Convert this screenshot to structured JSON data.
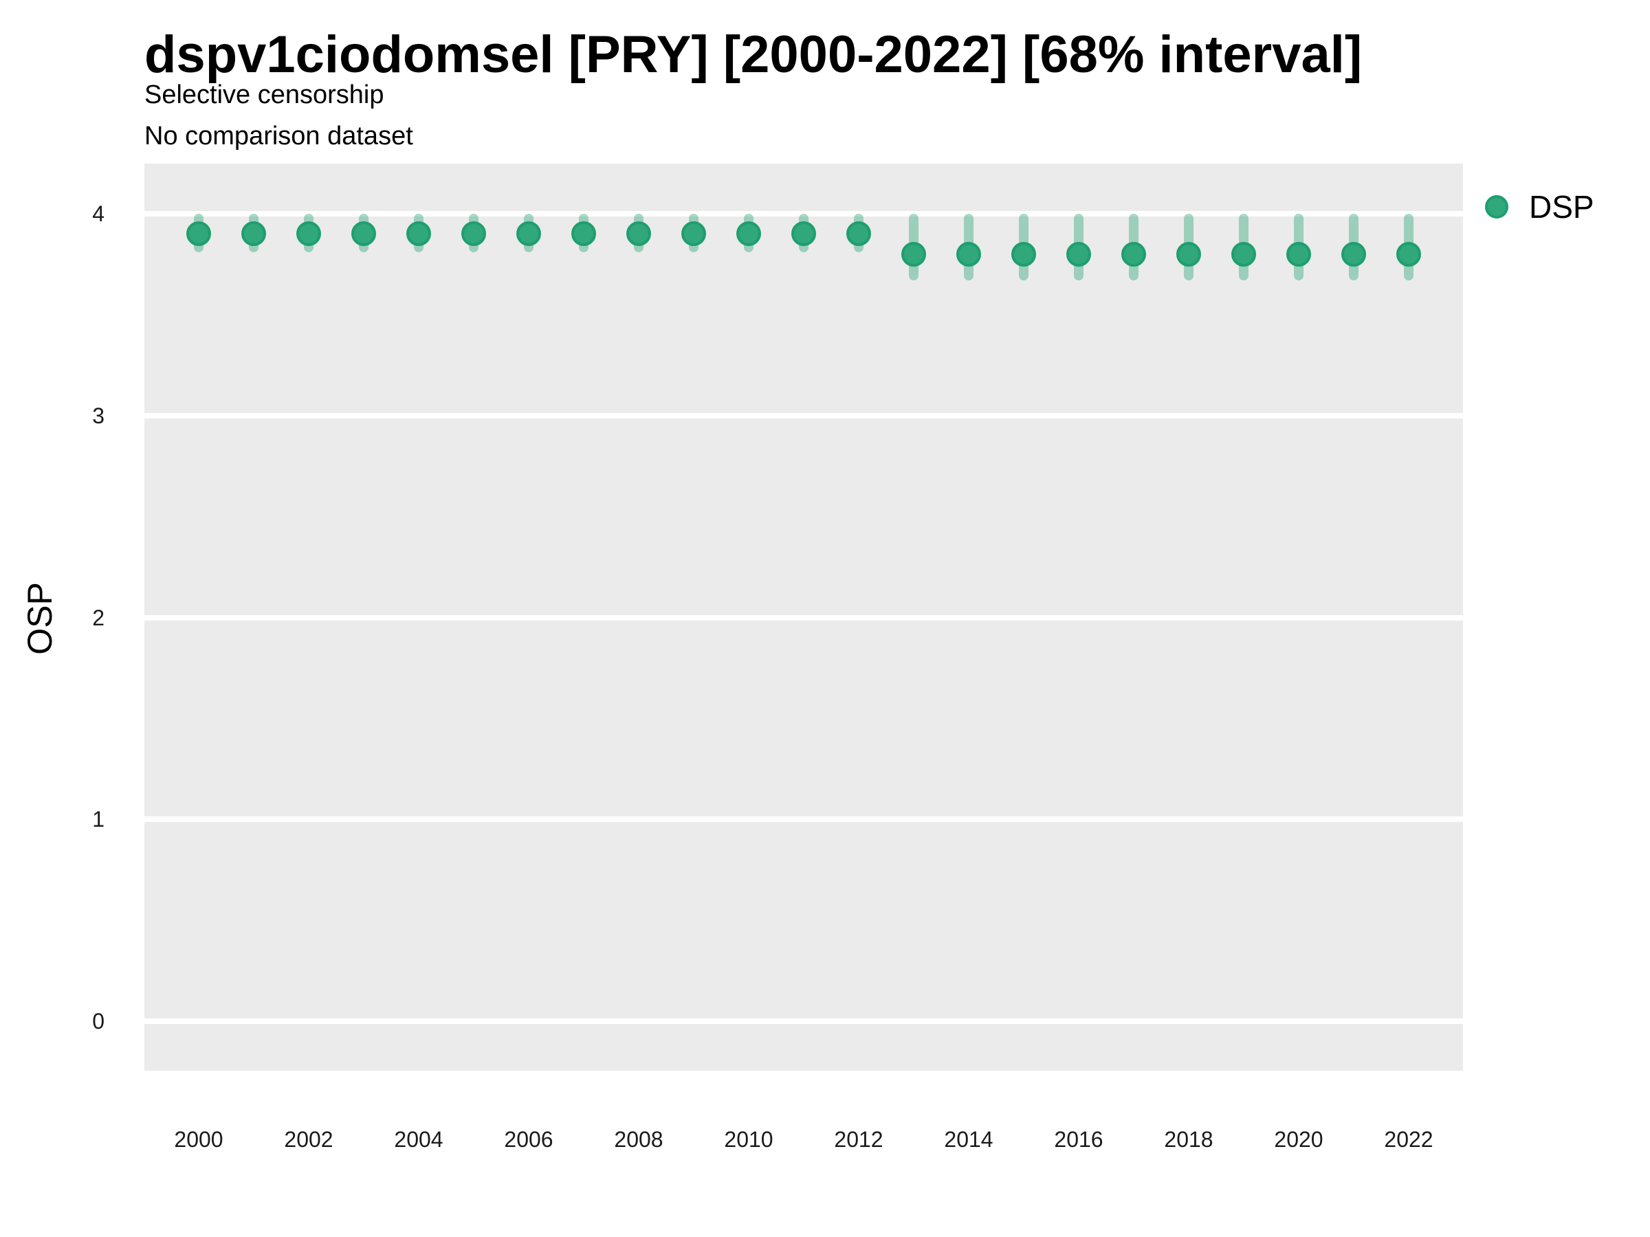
{
  "header": {
    "title": "dspv1ciodomsel [PRY] [2000-2022] [68% interval]",
    "subtitle1": "Selective censorship",
    "subtitle2": "No comparison dataset"
  },
  "legend": {
    "position": "right",
    "entries": [
      {
        "label": "DSP"
      }
    ]
  },
  "colors": {
    "point_fill": "#30A87C",
    "point_ring": "#1F9E6F",
    "interval_bar": "rgba(48,168,124,0.42)",
    "panel_bg": "#EBEBEB",
    "gridline": "#FFFFFF",
    "axis_text": "#1A1A1A",
    "title_text": "#000000"
  },
  "chart_data": {
    "type": "scatter",
    "title": "dspv1ciodomsel [PRY] [2000-2022] [68% interval]",
    "subtitle": [
      "Selective censorship",
      "No comparison dataset"
    ],
    "xlabel": "",
    "ylabel": "OSP",
    "interval": "68% interval",
    "xlim": [
      2000,
      2022
    ],
    "ylim": [
      0,
      4
    ],
    "yticks": [
      4,
      3,
      2,
      1,
      0
    ],
    "xticks": [
      2000,
      2002,
      2004,
      2006,
      2008,
      2010,
      2012,
      2014,
      2016,
      2018,
      2020,
      2022
    ],
    "grid": "horizontal-major-only",
    "legend_position": "right",
    "series": [
      {
        "name": "DSP",
        "points": [
          {
            "year": 2000,
            "est": 3.9,
            "lo": 3.81,
            "hi": 4.0
          },
          {
            "year": 2001,
            "est": 3.9,
            "lo": 3.81,
            "hi": 4.0
          },
          {
            "year": 2002,
            "est": 3.9,
            "lo": 3.81,
            "hi": 4.0
          },
          {
            "year": 2003,
            "est": 3.9,
            "lo": 3.81,
            "hi": 4.0
          },
          {
            "year": 2004,
            "est": 3.9,
            "lo": 3.81,
            "hi": 4.0
          },
          {
            "year": 2005,
            "est": 3.9,
            "lo": 3.81,
            "hi": 4.0
          },
          {
            "year": 2006,
            "est": 3.9,
            "lo": 3.81,
            "hi": 4.0
          },
          {
            "year": 2007,
            "est": 3.9,
            "lo": 3.81,
            "hi": 4.0
          },
          {
            "year": 2008,
            "est": 3.9,
            "lo": 3.81,
            "hi": 4.0
          },
          {
            "year": 2009,
            "est": 3.9,
            "lo": 3.81,
            "hi": 4.0
          },
          {
            "year": 2010,
            "est": 3.9,
            "lo": 3.81,
            "hi": 4.0
          },
          {
            "year": 2011,
            "est": 3.9,
            "lo": 3.81,
            "hi": 4.0
          },
          {
            "year": 2012,
            "est": 3.9,
            "lo": 3.81,
            "hi": 4.0
          },
          {
            "year": 2013,
            "est": 3.8,
            "lo": 3.67,
            "hi": 4.0
          },
          {
            "year": 2014,
            "est": 3.8,
            "lo": 3.67,
            "hi": 4.0
          },
          {
            "year": 2015,
            "est": 3.8,
            "lo": 3.67,
            "hi": 4.0
          },
          {
            "year": 2016,
            "est": 3.8,
            "lo": 3.67,
            "hi": 4.0
          },
          {
            "year": 2017,
            "est": 3.8,
            "lo": 3.67,
            "hi": 4.0
          },
          {
            "year": 2018,
            "est": 3.8,
            "lo": 3.67,
            "hi": 4.0
          },
          {
            "year": 2019,
            "est": 3.8,
            "lo": 3.67,
            "hi": 4.0
          },
          {
            "year": 2020,
            "est": 3.8,
            "lo": 3.67,
            "hi": 4.0
          },
          {
            "year": 2021,
            "est": 3.8,
            "lo": 3.67,
            "hi": 4.0
          },
          {
            "year": 2022,
            "est": 3.8,
            "lo": 3.67,
            "hi": 4.0
          }
        ]
      }
    ]
  }
}
